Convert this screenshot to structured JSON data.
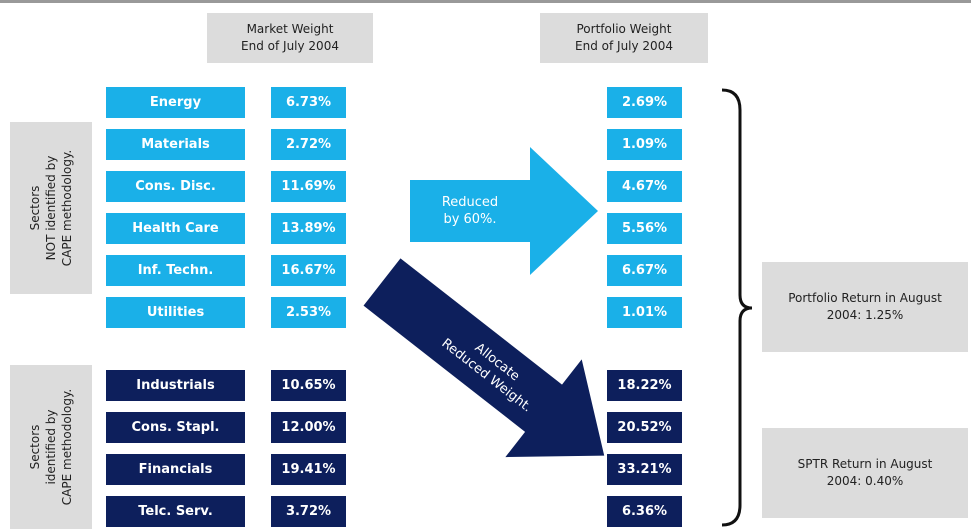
{
  "headers": {
    "market": [
      "Market Weight",
      "End of July 2004"
    ],
    "portfolio": [
      "Portfolio Weight",
      "End of July 2004"
    ]
  },
  "groups": [
    {
      "label": [
        "Sectors",
        "NOT identified by",
        "CAPE methodology."
      ],
      "rows": [
        {
          "sector": "Energy",
          "market": "6.73%",
          "portfolio": "2.69%"
        },
        {
          "sector": "Materials",
          "market": "2.72%",
          "portfolio": "1.09%"
        },
        {
          "sector": "Cons. Disc.",
          "market": "11.69%",
          "portfolio": "4.67%"
        },
        {
          "sector": "Health Care",
          "market": "13.89%",
          "portfolio": "5.56%"
        },
        {
          "sector": "Inf. Techn.",
          "market": "16.67%",
          "portfolio": "6.67%"
        },
        {
          "sector": "Utilities",
          "market": "2.53%",
          "portfolio": "1.01%"
        }
      ]
    },
    {
      "label": [
        "Sectors",
        "identified by",
        "CAPE methodology."
      ],
      "rows": [
        {
          "sector": "Industrials",
          "market": "10.65%",
          "portfolio": "18.22%"
        },
        {
          "sector": "Cons. Stapl.",
          "market": "12.00%",
          "portfolio": "20.52%"
        },
        {
          "sector": "Financials",
          "market": "19.41%",
          "portfolio": "33.21%"
        },
        {
          "sector": "Telc. Serv.",
          "market": "3.72%",
          "portfolio": "6.36%"
        }
      ]
    }
  ],
  "arrows": {
    "reduced": [
      "Reduced",
      "by 60%."
    ],
    "allocate": [
      "Allocate",
      "Reduced Weight."
    ]
  },
  "results": [
    [
      "Portfolio Return in August",
      "2004: 1.25%"
    ],
    [
      "SPTR Return in August",
      "2004: 0.40%"
    ]
  ]
}
